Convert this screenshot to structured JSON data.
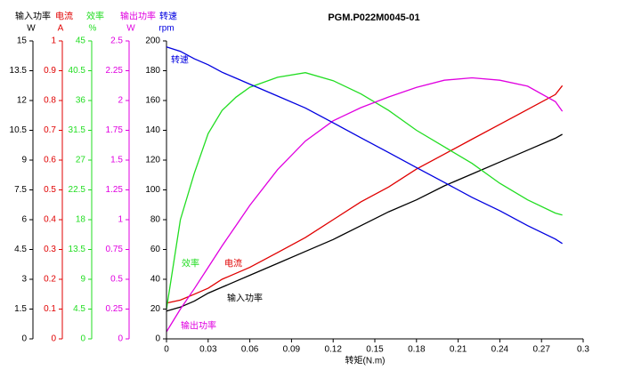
{
  "chart_data": {
    "type": "line",
    "title": "PGM.P022M0045-01",
    "xlabel": "转矩(N.m)",
    "x": [
      0,
      0.01,
      0.02,
      0.03,
      0.04,
      0.05,
      0.06,
      0.08,
      0.1,
      0.12,
      0.14,
      0.16,
      0.18,
      0.2,
      0.22,
      0.24,
      0.26,
      0.28,
      0.285
    ],
    "xlim": [
      0,
      0.3
    ],
    "xticks": [
      0,
      0.03,
      0.06,
      0.09,
      0.12,
      0.15,
      0.18,
      0.21,
      0.24,
      0.27,
      0.3
    ],
    "series": [
      {
        "name": "输入功率",
        "unit": "W",
        "color": "#000000",
        "ylim": [
          0,
          15
        ],
        "yticks": [
          0,
          1.5,
          3,
          4.5,
          6,
          7.5,
          9,
          10.5,
          12,
          13.5,
          15
        ],
        "values": [
          1.4,
          1.6,
          1.9,
          2.3,
          2.6,
          2.9,
          3.2,
          3.8,
          4.4,
          5.0,
          5.7,
          6.4,
          7.0,
          7.7,
          8.3,
          8.9,
          9.5,
          10.1,
          10.3
        ]
      },
      {
        "name": "电流",
        "unit": "A",
        "color": "#e00000",
        "ylim": [
          0,
          1
        ],
        "yticks": [
          0,
          0.1,
          0.2,
          0.3,
          0.4,
          0.5,
          0.6,
          0.7,
          0.8,
          0.9,
          1
        ],
        "values": [
          0.12,
          0.13,
          0.15,
          0.17,
          0.2,
          0.22,
          0.24,
          0.29,
          0.34,
          0.4,
          0.46,
          0.51,
          0.57,
          0.62,
          0.67,
          0.72,
          0.77,
          0.82,
          0.85
        ]
      },
      {
        "name": "效率",
        "unit": "%",
        "color": "#22dd22",
        "ylim": [
          0,
          45
        ],
        "yticks": [
          0,
          4.5,
          9,
          13.5,
          18,
          22.5,
          27,
          31.5,
          36,
          40.5,
          45
        ],
        "values": [
          4.5,
          18,
          25,
          31,
          34.5,
          36.5,
          38,
          39.5,
          40.2,
          39,
          37,
          34.5,
          31.5,
          29,
          26.5,
          23.5,
          21,
          19,
          18.7
        ]
      },
      {
        "name": "输出功率",
        "unit": "W",
        "color": "#e000e0",
        "ylim": [
          0,
          2.5
        ],
        "yticks": [
          0,
          0.25,
          0.5,
          0.75,
          1,
          1.25,
          1.5,
          1.75,
          2,
          2.25,
          2.5
        ],
        "values": [
          0.06,
          0.25,
          0.42,
          0.6,
          0.78,
          0.95,
          1.12,
          1.42,
          1.66,
          1.83,
          1.94,
          2.03,
          2.11,
          2.17,
          2.19,
          2.17,
          2.12,
          1.99,
          1.91
        ]
      },
      {
        "name": "转速",
        "unit": "rpm",
        "color": "#0000e0",
        "ylim": [
          0,
          200
        ],
        "yticks": [
          0,
          20,
          40,
          60,
          80,
          100,
          120,
          140,
          160,
          180,
          200
        ],
        "values": [
          196,
          193,
          188,
          184,
          179,
          175,
          171,
          163,
          155,
          145,
          135,
          125,
          115,
          105,
          95,
          86,
          76,
          67,
          64
        ]
      }
    ]
  }
}
